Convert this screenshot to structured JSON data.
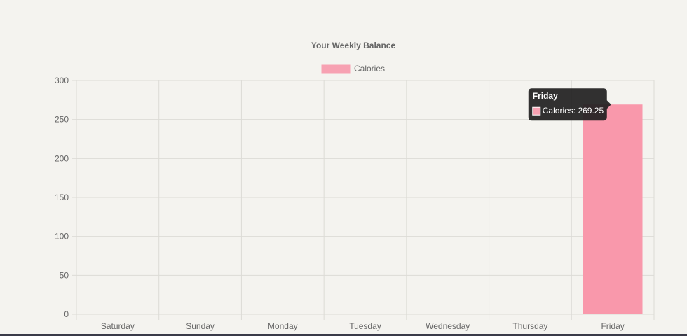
{
  "chart_data": {
    "type": "bar",
    "title": "Your Weekly Balance",
    "categories": [
      "Saturday",
      "Sunday",
      "Monday",
      "Tuesday",
      "Wednesday",
      "Thursday",
      "Friday"
    ],
    "series": [
      {
        "name": "Calories",
        "values": [
          0,
          0,
          0,
          0,
          0,
          0,
          269.25
        ],
        "fill_color": "#f7a1b2",
        "bar_color": "#f998ab"
      }
    ],
    "ylim": [
      0,
      300
    ],
    "yticks": [
      0,
      50,
      100,
      150,
      200,
      250,
      300
    ],
    "grid": true,
    "legend_position": "top-center",
    "tooltip": {
      "title": "Friday",
      "label": "Calories: 269.25",
      "category_index": 6
    }
  },
  "colors": {
    "background": "#f4f3ef",
    "grid": "#dcdbd6",
    "text": "#666666",
    "tooltip_bg": "#1f1f1f"
  }
}
